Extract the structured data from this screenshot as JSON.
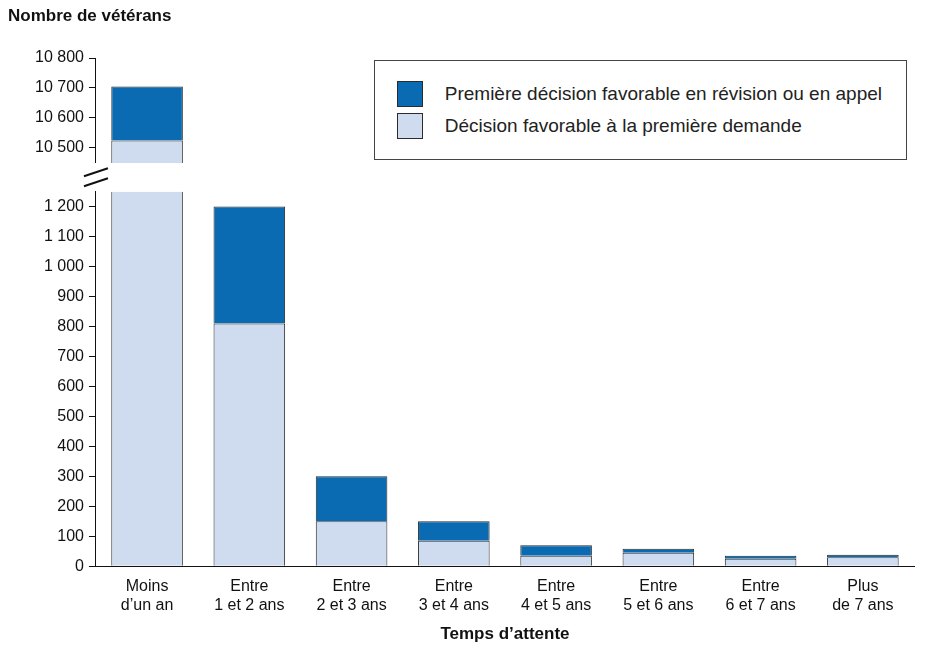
{
  "chart_data": {
    "type": "bar",
    "stacked": true,
    "ylabel": "Nombre de vétérans",
    "xlabel": "Temps d’attente",
    "categories": [
      "Moins d’un an",
      "Entre 1 et 2 ans",
      "Entre 2 et 3 ans",
      "Entre 3 et 4 ans",
      "Entre 4 et 5 ans",
      "Entre 5 et 6 ans",
      "Entre 6 et 7 ans",
      "Plus de 7 ans"
    ],
    "series": [
      {
        "name": "Décision favorable à la première demande",
        "color": "#cfdbee",
        "values": [
          10525,
          810,
          150,
          85,
          35,
          45,
          25,
          30
        ]
      },
      {
        "name": "Première décision favorable en révision ou en appel",
        "color": "#0a6bb3",
        "values": [
          180,
          390,
          150,
          65,
          35,
          13,
          10,
          8
        ]
      }
    ],
    "ylim": [
      0,
      10800
    ],
    "ybreak": [
      1250,
      10450
    ],
    "yticks": [
      0,
      100,
      200,
      300,
      400,
      500,
      600,
      700,
      800,
      900,
      {
        "value": 1000,
        "label": "1 000"
      },
      {
        "value": 1100,
        "label": "1 100"
      },
      {
        "value": 1200,
        "label": "1 200"
      },
      {
        "value": 10500,
        "label": "10 500"
      },
      {
        "value": 10600,
        "label": "10 600"
      },
      {
        "value": 10700,
        "label": "10 700"
      },
      {
        "value": 10800,
        "label": "10 800"
      }
    ],
    "grid": false,
    "legend": "upper right"
  }
}
